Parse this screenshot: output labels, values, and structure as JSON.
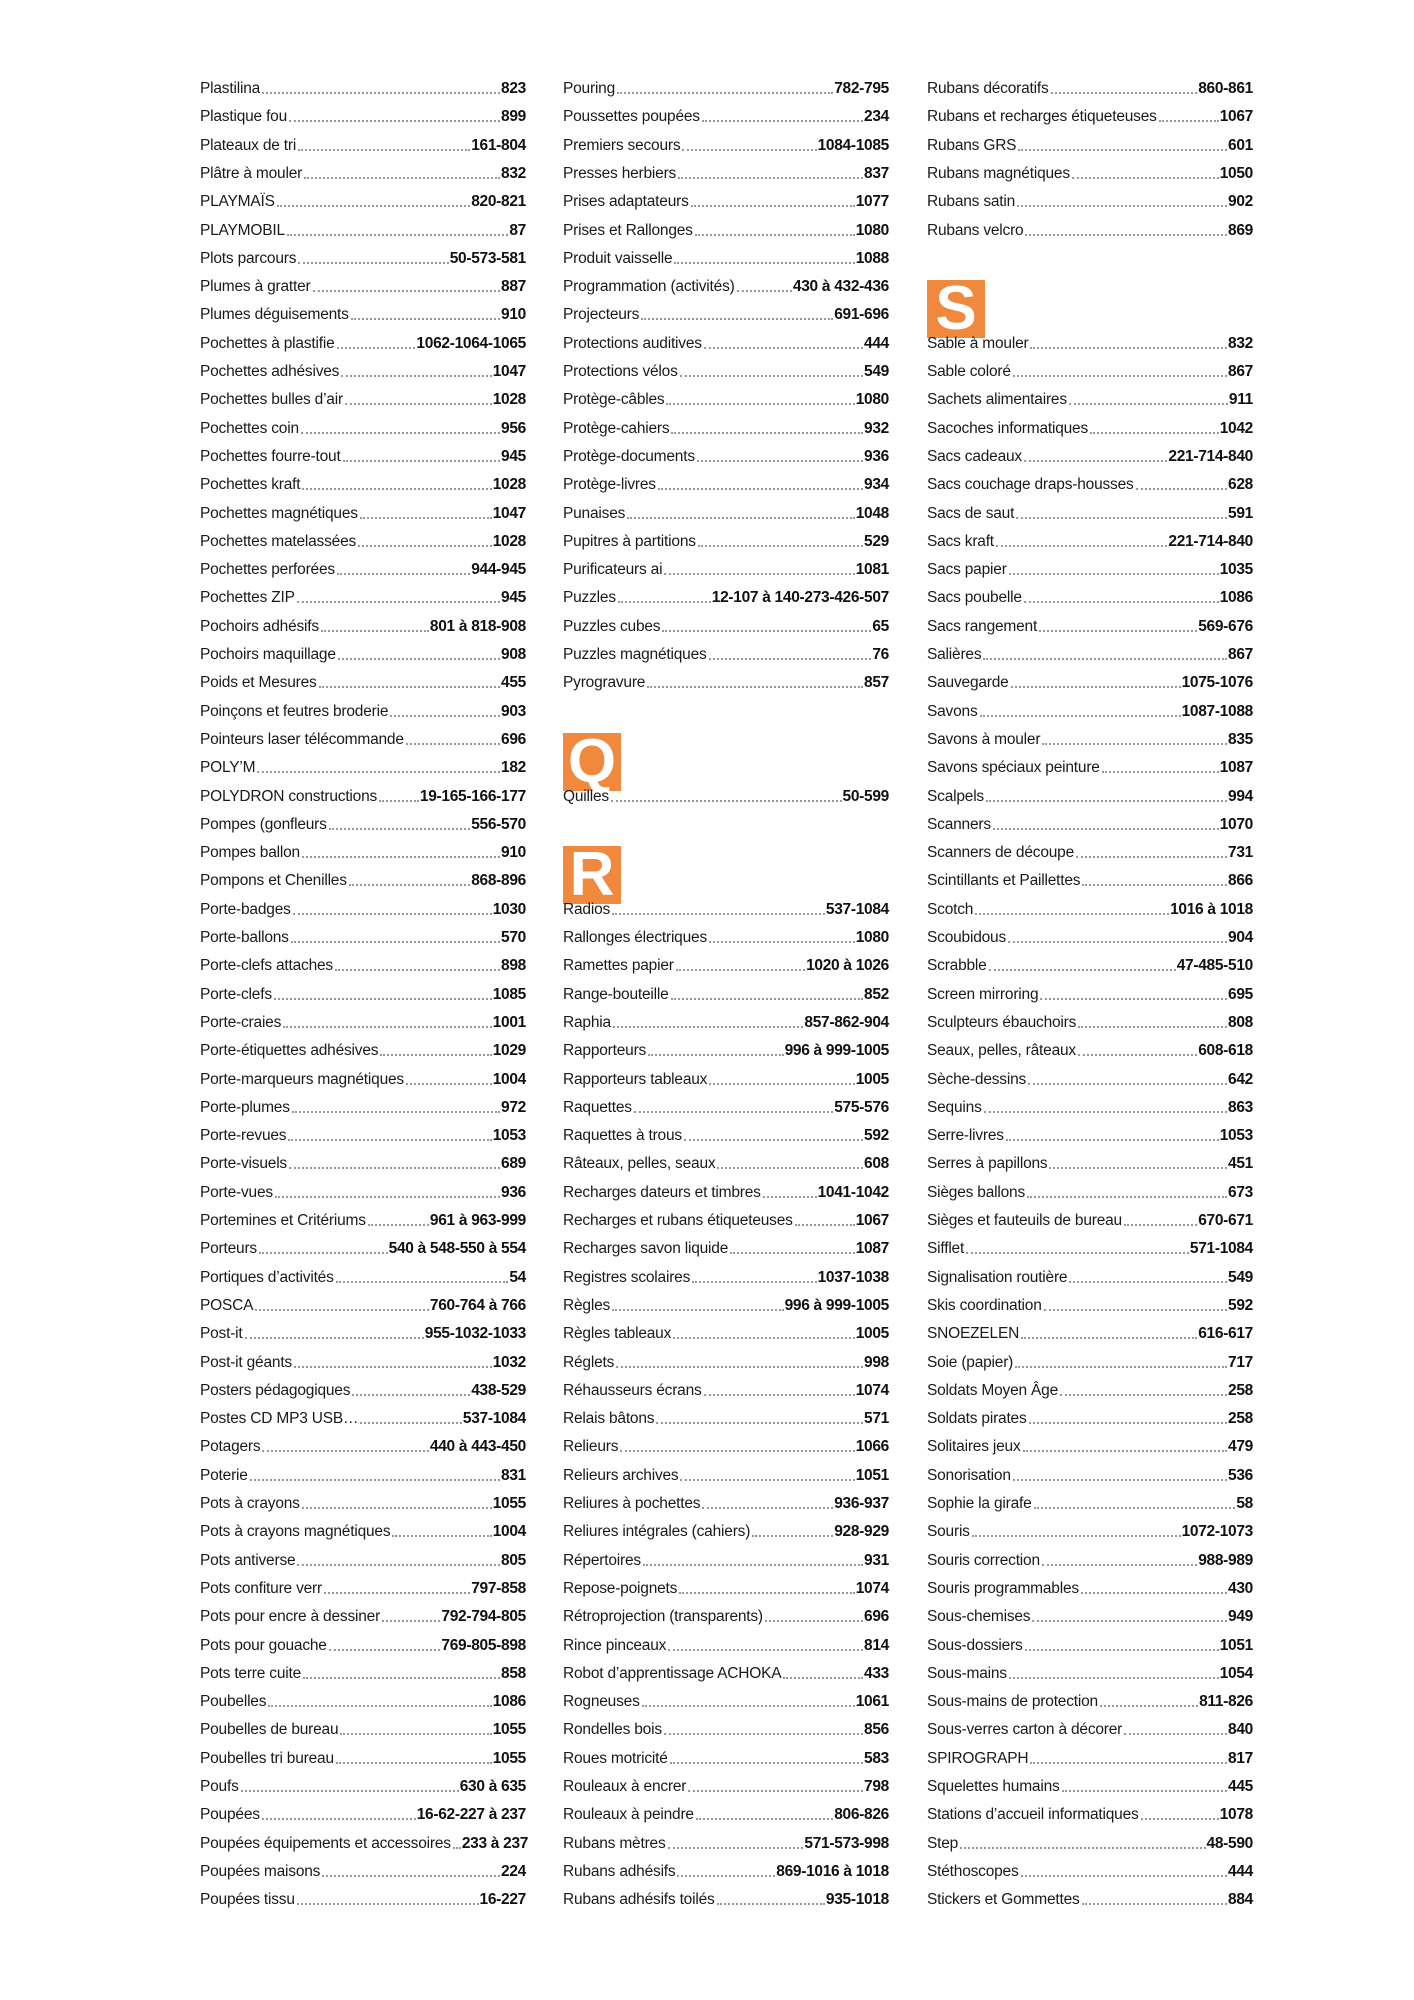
{
  "colors": {
    "letter_badge": "#f0883e",
    "text": "#1a1a1a",
    "leader": "#999999"
  },
  "columns": [
    {
      "items": [
        {
          "label": "Plastilina",
          "pages": "823"
        },
        {
          "label": "Plastique fou",
          "pages": "899"
        },
        {
          "label": "Plateaux de tri",
          "pages": "161-804"
        },
        {
          "label": "Plâtre à mouler",
          "pages": "832"
        },
        {
          "label": "PLAYMAÏS",
          "pages": "820-821"
        },
        {
          "label": "PLAYMOBIL",
          "pages": "87"
        },
        {
          "label": "Plots parcours",
          "pages": "50-573-581"
        },
        {
          "label": "Plumes à gratter",
          "pages": "887"
        },
        {
          "label": "Plumes déguisements",
          "pages": "910"
        },
        {
          "label": "Pochettes à plastifie",
          "pages": "1062-1064-1065"
        },
        {
          "label": "Pochettes adhésives",
          "pages": "1047"
        },
        {
          "label": "Pochettes bulles d’air",
          "pages": "1028"
        },
        {
          "label": "Pochettes coin",
          "pages": "956"
        },
        {
          "label": "Pochettes fourre-tout",
          "pages": "945"
        },
        {
          "label": "Pochettes kraft",
          "pages": "1028"
        },
        {
          "label": "Pochettes magnétiques",
          "pages": "1047"
        },
        {
          "label": "Pochettes matelassées",
          "pages": "1028"
        },
        {
          "label": "Pochettes perforées",
          "pages": "944-945"
        },
        {
          "label": "Pochettes ZIP",
          "pages": "945"
        },
        {
          "label": "Pochoirs adhésifs",
          "pages": "801 à 818-908"
        },
        {
          "label": "Pochoirs maquillage",
          "pages": "908"
        },
        {
          "label": "Poids et Mesures",
          "pages": "455"
        },
        {
          "label": "Poinçons et feutres broderie",
          "pages": "903"
        },
        {
          "label": "Pointeurs laser télécommande",
          "pages": "696"
        },
        {
          "label": "POLY’M",
          "pages": "182"
        },
        {
          "label": "POLYDRON constructions",
          "pages": "19-165-166-177"
        },
        {
          "label": "Pompes (gonfleurs",
          "pages": "556-570"
        },
        {
          "label": "Pompes ballon",
          "pages": "910"
        },
        {
          "label": "Pompons et Chenilles",
          "pages": "868-896"
        },
        {
          "label": "Porte-badges",
          "pages": "1030"
        },
        {
          "label": "Porte-ballons",
          "pages": "570"
        },
        {
          "label": "Porte-clefs attaches",
          "pages": "898"
        },
        {
          "label": "Porte-clefs",
          "pages": "1085"
        },
        {
          "label": "Porte-craies",
          "pages": "1001"
        },
        {
          "label": "Porte-étiquettes adhésives",
          "pages": "1029"
        },
        {
          "label": "Porte-marqueurs magnétiques",
          "pages": "1004"
        },
        {
          "label": "Porte-plumes",
          "pages": "972"
        },
        {
          "label": "Porte-revues",
          "pages": "1053"
        },
        {
          "label": "Porte-visuels",
          "pages": "689"
        },
        {
          "label": "Porte-vues",
          "pages": "936"
        },
        {
          "label": "Portemines et Critériums",
          "pages": "961 à 963-999"
        },
        {
          "label": "Porteurs",
          "pages": "540 à 548-550 à 554"
        },
        {
          "label": "Portiques d’activités",
          "pages": "54"
        },
        {
          "label": "POSCA",
          "pages": "760-764 à 766"
        },
        {
          "label": "Post-it",
          "pages": "955-1032-1033"
        },
        {
          "label": "Post-it géants",
          "pages": "1032"
        },
        {
          "label": "Posters pédagogiques",
          "pages": "438-529"
        },
        {
          "label": "Postes CD MP3 USB…",
          "pages": "537-1084"
        },
        {
          "label": "Potagers",
          "pages": "440 à 443-450"
        },
        {
          "label": "Poterie",
          "pages": "831"
        },
        {
          "label": "Pots à crayons",
          "pages": "1055"
        },
        {
          "label": "Pots à crayons magnétiques",
          "pages": "1004"
        },
        {
          "label": "Pots antiverse",
          "pages": "805"
        },
        {
          "label": "Pots confiture verr",
          "pages": "797-858"
        },
        {
          "label": "Pots pour encre à dessiner",
          "pages": "792-794-805"
        },
        {
          "label": "Pots pour gouache",
          "pages": "769-805-898"
        },
        {
          "label": "Pots terre cuite",
          "pages": "858"
        },
        {
          "label": "Poubelles",
          "pages": "1086"
        },
        {
          "label": "Poubelles de bureau",
          "pages": "1055"
        },
        {
          "label": "Poubelles tri bureau",
          "pages": "1055"
        },
        {
          "label": "Poufs",
          "pages": "630 à 635"
        },
        {
          "label": "Poupées",
          "pages": "16-62-227 à 237"
        },
        {
          "label": "Poupées équipements et accessoires",
          "pages": "233 à 237"
        },
        {
          "label": "Poupées maisons",
          "pages": "224"
        },
        {
          "label": "Poupées tissu",
          "pages": "16-227"
        }
      ]
    },
    {
      "items": [
        {
          "label": "Pouring",
          "pages": "782-795"
        },
        {
          "label": "Poussettes poupées",
          "pages": "234"
        },
        {
          "label": "Premiers secours",
          "pages": "1084-1085"
        },
        {
          "label": "Presses herbiers",
          "pages": "837"
        },
        {
          "label": "Prises adaptateurs",
          "pages": "1077"
        },
        {
          "label": "Prises et Rallonges",
          "pages": "1080"
        },
        {
          "label": "Produit vaisselle",
          "pages": "1088"
        },
        {
          "label": "Programmation (activités)",
          "pages": "430 à 432-436"
        },
        {
          "label": "Projecteurs",
          "pages": "691-696"
        },
        {
          "label": "Protections auditives",
          "pages": "444"
        },
        {
          "label": "Protections vélos",
          "pages": "549"
        },
        {
          "label": "Protège-câbles",
          "pages": "1080"
        },
        {
          "label": "Protège-cahiers",
          "pages": "932"
        },
        {
          "label": "Protège-documents",
          "pages": "936"
        },
        {
          "label": "Protège-livres",
          "pages": "934"
        },
        {
          "label": "Punaises",
          "pages": "1048"
        },
        {
          "label": "Pupitres à partitions",
          "pages": "529"
        },
        {
          "label": "Purificateurs ai",
          "pages": "1081"
        },
        {
          "label": "Puzzles",
          "pages": "12-107 à 140-273-426-507"
        },
        {
          "label": "Puzzles cubes",
          "pages": "65"
        },
        {
          "label": "Puzzles magnétiques",
          "pages": "76"
        },
        {
          "label": "Pyrogravure",
          "pages": "857"
        },
        {
          "letter": "Q"
        },
        {
          "label": "Quilles",
          "pages": "50-599"
        },
        {
          "letter": "R"
        },
        {
          "label": "Radios",
          "pages": "537-1084"
        },
        {
          "label": "Rallonges électriques",
          "pages": "1080"
        },
        {
          "label": "Ramettes papier",
          "pages": "1020 à 1026"
        },
        {
          "label": "Range-bouteille",
          "pages": "852"
        },
        {
          "label": "Raphia",
          "pages": "857-862-904"
        },
        {
          "label": "Rapporteurs",
          "pages": "996 à 999-1005"
        },
        {
          "label": "Rapporteurs tableaux",
          "pages": "1005"
        },
        {
          "label": "Raquettes",
          "pages": "575-576"
        },
        {
          "label": "Raquettes à trous",
          "pages": "592"
        },
        {
          "label": "Râteaux, pelles, seaux",
          "pages": "608"
        },
        {
          "label": "Recharges dateurs et timbres",
          "pages": "1041-1042"
        },
        {
          "label": "Recharges et rubans étiqueteuses",
          "pages": "1067"
        },
        {
          "label": "Recharges savon liquide",
          "pages": "1087"
        },
        {
          "label": "Registres scolaires",
          "pages": "1037-1038"
        },
        {
          "label": "Règles",
          "pages": "996 à 999-1005"
        },
        {
          "label": "Règles tableaux",
          "pages": "1005"
        },
        {
          "label": "Réglets",
          "pages": "998"
        },
        {
          "label": "Réhausseurs écrans",
          "pages": "1074"
        },
        {
          "label": "Relais bâtons",
          "pages": "571"
        },
        {
          "label": "Relieurs",
          "pages": "1066"
        },
        {
          "label": "Relieurs archives",
          "pages": "1051"
        },
        {
          "label": "Reliures à pochettes",
          "pages": "936-937"
        },
        {
          "label": "Reliures intégrales (cahiers)",
          "pages": "928-929"
        },
        {
          "label": "Répertoires",
          "pages": "931"
        },
        {
          "label": "Repose-poignets",
          "pages": "1074"
        },
        {
          "label": "Rétroprojection (transparents)",
          "pages": "696"
        },
        {
          "label": "Rince pinceaux",
          "pages": "814"
        },
        {
          "label": "Robot d’apprentissage ACHOKA",
          "pages": "433"
        },
        {
          "label": "Rogneuses",
          "pages": "1061"
        },
        {
          "label": "Rondelles bois",
          "pages": "856"
        },
        {
          "label": "Roues motricité",
          "pages": "583"
        },
        {
          "label": "Rouleaux à encrer",
          "pages": "798"
        },
        {
          "label": "Rouleaux à peindre",
          "pages": "806-826"
        },
        {
          "label": "Rubans mètres",
          "pages": "571-573-998"
        },
        {
          "label": "Rubans adhésifs",
          "pages": "869-1016 à 1018"
        },
        {
          "label": "Rubans adhésifs toilés",
          "pages": "935-1018"
        }
      ]
    },
    {
      "items": [
        {
          "label": "Rubans décoratifs",
          "pages": "860-861"
        },
        {
          "label": "Rubans et recharges étiqueteuses",
          "pages": "1067"
        },
        {
          "label": "Rubans GRS",
          "pages": "601"
        },
        {
          "label": "Rubans magnétiques",
          "pages": "1050"
        },
        {
          "label": "Rubans satin",
          "pages": "902"
        },
        {
          "label": "Rubans velcro",
          "pages": "869"
        },
        {
          "letter": "S"
        },
        {
          "label": "Sable à mouler",
          "pages": "832"
        },
        {
          "label": "Sable coloré",
          "pages": "867"
        },
        {
          "label": "Sachets alimentaires",
          "pages": "911"
        },
        {
          "label": "Sacoches informatiques",
          "pages": "1042"
        },
        {
          "label": "Sacs cadeaux",
          "pages": "221-714-840"
        },
        {
          "label": "Sacs couchage draps-housses",
          "pages": "628"
        },
        {
          "label": "Sacs de saut",
          "pages": "591"
        },
        {
          "label": "Sacs kraft",
          "pages": "221-714-840"
        },
        {
          "label": "Sacs papier",
          "pages": "1035"
        },
        {
          "label": "Sacs poubelle",
          "pages": "1086"
        },
        {
          "label": "Sacs rangement",
          "pages": "569-676"
        },
        {
          "label": "Salières",
          "pages": "867"
        },
        {
          "label": "Sauvegarde",
          "pages": "1075-1076"
        },
        {
          "label": "Savons",
          "pages": "1087-1088"
        },
        {
          "label": "Savons à mouler",
          "pages": "835"
        },
        {
          "label": "Savons spéciaux peinture",
          "pages": "1087"
        },
        {
          "label": "Scalpels",
          "pages": "994"
        },
        {
          "label": "Scanners",
          "pages": "1070"
        },
        {
          "label": "Scanners de découpe",
          "pages": "731"
        },
        {
          "label": "Scintillants et Paillettes",
          "pages": "866"
        },
        {
          "label": "Scotch",
          "pages": "1016 à 1018"
        },
        {
          "label": "Scoubidous",
          "pages": "904"
        },
        {
          "label": "Scrabble",
          "pages": "47-485-510"
        },
        {
          "label": "Screen mirroring",
          "pages": "695"
        },
        {
          "label": "Sculpteurs ébauchoirs",
          "pages": "808"
        },
        {
          "label": "Seaux, pelles, râteaux",
          "pages": "608-618"
        },
        {
          "label": "Sèche-dessins",
          "pages": "642"
        },
        {
          "label": "Sequins",
          "pages": "863"
        },
        {
          "label": "Serre-livres",
          "pages": "1053"
        },
        {
          "label": "Serres à papillons",
          "pages": "451"
        },
        {
          "label": "Sièges ballons",
          "pages": "673"
        },
        {
          "label": "Sièges et fauteuils de bureau",
          "pages": "670-671"
        },
        {
          "label": "Sifflet",
          "pages": "571-1084"
        },
        {
          "label": "Signalisation routière",
          "pages": "549"
        },
        {
          "label": "Skis coordination",
          "pages": "592"
        },
        {
          "label": "SNOEZELEN",
          "pages": "616-617"
        },
        {
          "label": "Soie (papier)",
          "pages": "717"
        },
        {
          "label": "Soldats Moyen Âge",
          "pages": "258"
        },
        {
          "label": "Soldats pirates",
          "pages": "258"
        },
        {
          "label": "Solitaires jeux",
          "pages": "479"
        },
        {
          "label": "Sonorisation",
          "pages": "536"
        },
        {
          "label": "Sophie la girafe",
          "pages": "58"
        },
        {
          "label": "Souris",
          "pages": "1072-1073"
        },
        {
          "label": "Souris correction",
          "pages": "988-989"
        },
        {
          "label": "Souris programmables",
          "pages": "430"
        },
        {
          "label": "Sous-chemises",
          "pages": "949"
        },
        {
          "label": "Sous-dossiers",
          "pages": "1051"
        },
        {
          "label": "Sous-mains",
          "pages": "1054"
        },
        {
          "label": "Sous-mains de protection",
          "pages": "811-826"
        },
        {
          "label": "Sous-verres carton à décorer",
          "pages": "840"
        },
        {
          "label": "SPIROGRAPH",
          "pages": "817"
        },
        {
          "label": "Squelettes humains",
          "pages": "445"
        },
        {
          "label": "Stations d’accueil informatiques",
          "pages": "1078"
        },
        {
          "label": "Step",
          "pages": "48-590"
        },
        {
          "label": "Stéthoscopes",
          "pages": "444"
        },
        {
          "label": "Stickers et Gommettes",
          "pages": "884"
        }
      ]
    }
  ]
}
